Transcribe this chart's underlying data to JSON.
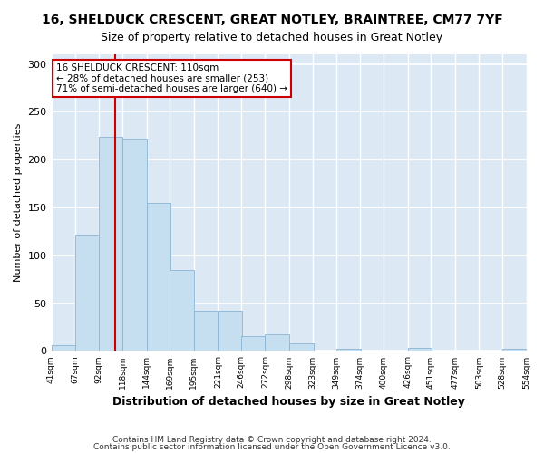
{
  "title": "16, SHELDUCK CRESCENT, GREAT NOTLEY, BRAINTREE, CM77 7YF",
  "subtitle": "Size of property relative to detached houses in Great Notley",
  "xlabel": "Distribution of detached houses by size in Great Notley",
  "ylabel": "Number of detached properties",
  "bar_color": "#c5dff0",
  "bar_edge_color": "#8ab4d4",
  "vline_x": 110,
  "vline_color": "#cc0000",
  "annotation_line1": "16 SHELDUCK CRESCENT: 110sqm",
  "annotation_line2": "← 28% of detached houses are smaller (253)",
  "annotation_line3": "71% of semi-detached houses are larger (640) →",
  "annotation_box_color": "white",
  "annotation_box_edge_color": "#cc0000",
  "bins": [
    41,
    67,
    92,
    118,
    144,
    169,
    195,
    221,
    246,
    272,
    298,
    323,
    349,
    374,
    400,
    426,
    451,
    477,
    503,
    528,
    554
  ],
  "values": [
    6,
    122,
    224,
    222,
    155,
    85,
    42,
    42,
    16,
    17,
    8,
    0,
    2,
    0,
    0,
    3,
    0,
    0,
    0,
    2
  ],
  "ylim": [
    0,
    310
  ],
  "yticks": [
    0,
    50,
    100,
    150,
    200,
    250,
    300
  ],
  "footer_line1": "Contains HM Land Registry data © Crown copyright and database right 2024.",
  "footer_line2": "Contains public sector information licensed under the Open Government Licence v3.0.",
  "background_color": "#dce9f5",
  "grid_color": "white",
  "fig_background": "white",
  "title_fontsize": 10,
  "subtitle_fontsize": 9
}
